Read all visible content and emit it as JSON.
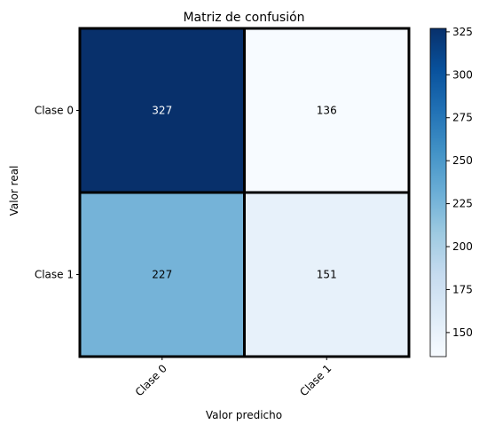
{
  "chart_data": {
    "type": "heatmap",
    "title": "Matriz de confusión",
    "xlabel": "Valor predicho",
    "ylabel": "Valor real",
    "x_categories": [
      "Clase 0",
      "Clase 1"
    ],
    "y_categories": [
      "Clase 0",
      "Clase 1"
    ],
    "values": [
      [
        327,
        136
      ],
      [
        227,
        151
      ]
    ],
    "colormap": "Blues",
    "colorbar": {
      "min": 136,
      "max": 327,
      "ticks": [
        150,
        175,
        200,
        225,
        250,
        275,
        300,
        325
      ]
    },
    "grid": false,
    "cell_text_colors": {
      "dark": "#ffffff",
      "light": "#000000"
    }
  }
}
